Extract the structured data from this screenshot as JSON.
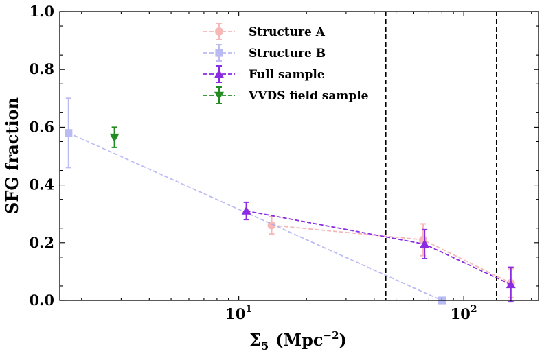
{
  "chart_data": {
    "type": "scatter",
    "xscale": "log",
    "xlim": [
      1.6,
      215
    ],
    "ylim": [
      0,
      1.0
    ],
    "xlabel_main": "Σ",
    "xlabel_sub": "5",
    "xlabel_unit_open": "(Mpc",
    "xlabel_unit_sup": "−2",
    "xlabel_unit_close": ")",
    "ylabel": "SFG fraction",
    "xtick_labels": [
      {
        "value": 10,
        "base": "10",
        "exp": "1"
      },
      {
        "value": 100,
        "base": "10",
        "exp": "2"
      }
    ],
    "ytick_values": [
      0.0,
      0.2,
      0.4,
      0.6,
      0.8,
      1.0
    ],
    "ytick_labels": [
      "0.0",
      "0.2",
      "0.4",
      "0.6",
      "0.8",
      "1.0"
    ],
    "vlines": [
      45,
      140
    ],
    "legend_position": "upper-center",
    "series": [
      {
        "name": "Structure A",
        "color": "#f4a0a0",
        "marker": "circle",
        "alpha": 0.75,
        "x": [
          14,
          66,
          162
        ],
        "y": [
          0.26,
          0.21,
          0.06
        ],
        "err": [
          0.03,
          0.055,
          0.05
        ]
      },
      {
        "name": "Structure B",
        "color": "#a5a5f0",
        "marker": "square",
        "alpha": 0.75,
        "x": [
          1.75,
          80
        ],
        "y": [
          0.58,
          0.0
        ],
        "err": [
          0.12,
          0.0
        ]
      },
      {
        "name": "Full sample",
        "color": "#8a2be2",
        "marker": "triangle-up",
        "alpha": 1,
        "x": [
          10.8,
          67,
          162
        ],
        "y": [
          0.31,
          0.195,
          0.055
        ],
        "err": [
          0.03,
          0.05,
          0.06
        ]
      },
      {
        "name": "VVDS field sample",
        "color": "#228b22",
        "marker": "triangle-down",
        "alpha": 1,
        "x": [
          2.8
        ],
        "y": [
          0.565
        ],
        "err": [
          0.035
        ]
      }
    ]
  }
}
